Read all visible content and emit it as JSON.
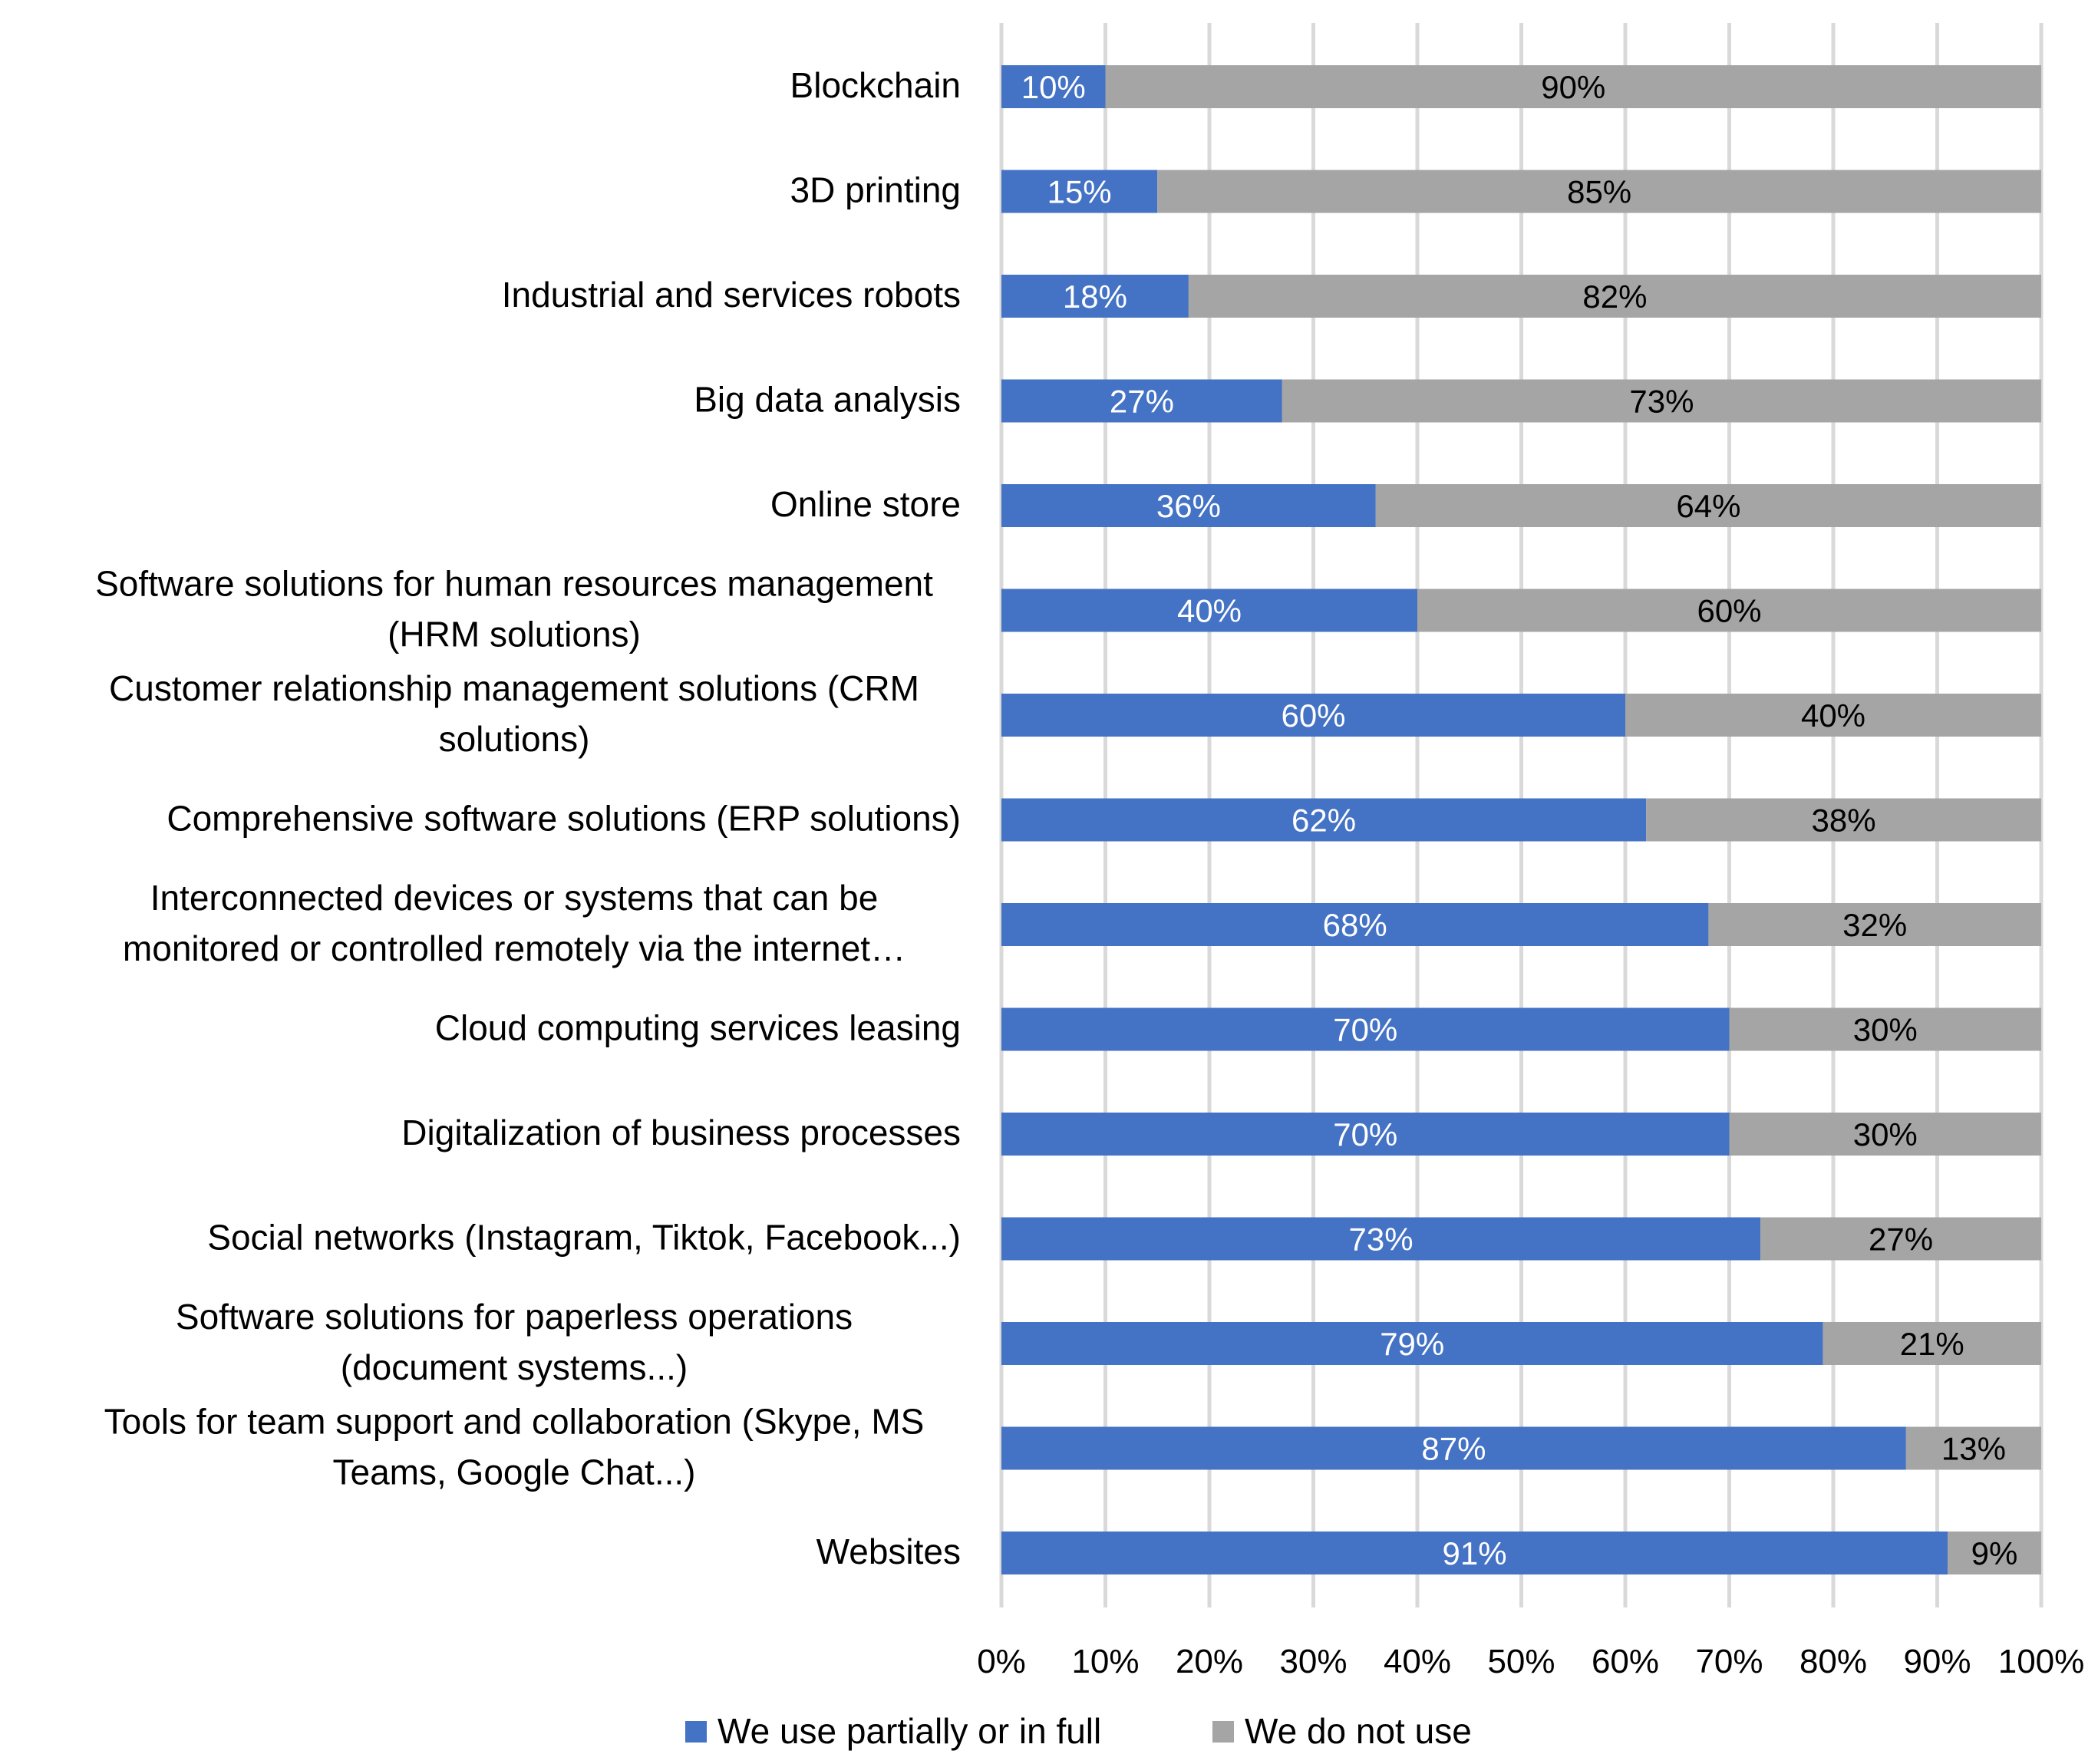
{
  "chart_data": {
    "type": "bar",
    "orientation": "horizontal",
    "stacked": true,
    "percent_stacked": true,
    "title": "",
    "xlabel": "",
    "ylabel": "",
    "xlim": [
      0,
      100
    ],
    "grid": true,
    "legend_position": "bottom",
    "categories": [
      [
        "Blockchain"
      ],
      [
        "3D printing"
      ],
      [
        "Industrial and services robots"
      ],
      [
        "Big data analysis"
      ],
      [
        "Online store"
      ],
      [
        "Software solutions for human resources management",
        "(HRM solutions)"
      ],
      [
        "Customer relationship management solutions (CRM",
        "solutions)"
      ],
      [
        "Comprehensive software solutions (ERP solutions)"
      ],
      [
        "Interconnected devices or systems that can be",
        "monitored or controlled remotely via the internet…"
      ],
      [
        "Cloud computing services leasing"
      ],
      [
        "Digitalization of business processes"
      ],
      [
        "Social networks (Instagram, Tiktok, Facebook...)"
      ],
      [
        "Software solutions for paperless operations",
        "(document systems...)"
      ],
      [
        "Tools for team support and collaboration (Skype, MS",
        "Teams, Google Chat...)"
      ],
      [
        "Websites"
      ]
    ],
    "series": [
      {
        "name": "We use partially or in full",
        "color": "#4472c4",
        "label_color": "#ffffff",
        "values": [
          10,
          15,
          18,
          27,
          36,
          40,
          60,
          62,
          68,
          70,
          70,
          73,
          79,
          87,
          91
        ],
        "labels": [
          "10%",
          "15%",
          "18%",
          "27%",
          "36%",
          "40%",
          "60%",
          "62%",
          "68%",
          "70%",
          "70%",
          "73%",
          "79%",
          "87%",
          "91%"
        ]
      },
      {
        "name": "We do not use",
        "color": "#a5a5a5",
        "label_color": "#000000",
        "values": [
          90,
          85,
          82,
          73,
          64,
          60,
          40,
          38,
          32,
          30,
          30,
          27,
          21,
          13,
          9
        ],
        "labels": [
          "90%",
          "85%",
          "82%",
          "73%",
          "64%",
          "60%",
          "40%",
          "38%",
          "32%",
          "30%",
          "30%",
          "27%",
          "21%",
          "13%",
          "9%"
        ]
      }
    ],
    "ticks": [
      0,
      10,
      20,
      30,
      40,
      50,
      60,
      70,
      80,
      90,
      100
    ],
    "tick_labels": [
      "0%",
      "10%",
      "20%",
      "30%",
      "40%",
      "50%",
      "60%",
      "70%",
      "80%",
      "90%",
      "100%"
    ]
  }
}
